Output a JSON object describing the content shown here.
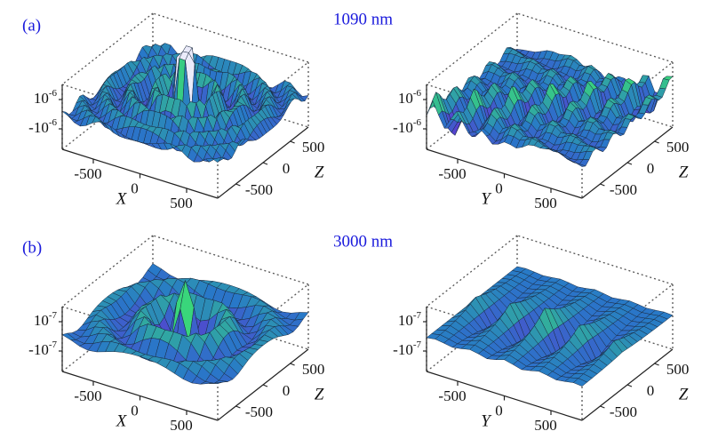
{
  "rows": [
    {
      "label": "(a)",
      "title": "1090 nm",
      "plots": [
        {
          "v_ticks": [
            {
              "base": "10",
              "exp": "-6"
            },
            {
              "base": "-10",
              "exp": "-6"
            }
          ],
          "h_ticks": [
            "-500",
            "0",
            "500"
          ],
          "h_label": "X",
          "d_ticks": [
            "500",
            "0",
            "-500"
          ],
          "d_label": "Z"
        },
        {
          "v_ticks": [
            {
              "base": "10",
              "exp": "-6"
            },
            {
              "base": "-10",
              "exp": "-6"
            }
          ],
          "h_ticks": [
            "-500",
            "0",
            "500"
          ],
          "h_label": "Y",
          "d_ticks": [
            "500",
            "0",
            "-500"
          ],
          "d_label": "Z"
        }
      ]
    },
    {
      "label": "(b)",
      "title": "3000 nm",
      "plots": [
        {
          "v_ticks": [
            {
              "base": "10",
              "exp": "-7"
            },
            {
              "base": "-10",
              "exp": "-7"
            }
          ],
          "h_ticks": [
            "-500",
            "0",
            "500"
          ],
          "h_label": "X",
          "d_ticks": [
            "500",
            "0",
            "-500"
          ],
          "d_label": "Z"
        },
        {
          "v_ticks": [
            {
              "base": "10",
              "exp": "-7"
            },
            {
              "base": "-10",
              "exp": "-7"
            }
          ],
          "h_ticks": [
            "-500",
            "0",
            "500"
          ],
          "h_label": "Y",
          "d_ticks": [
            "500",
            "0",
            "-500"
          ],
          "d_label": "Z"
        }
      ]
    }
  ]
}
